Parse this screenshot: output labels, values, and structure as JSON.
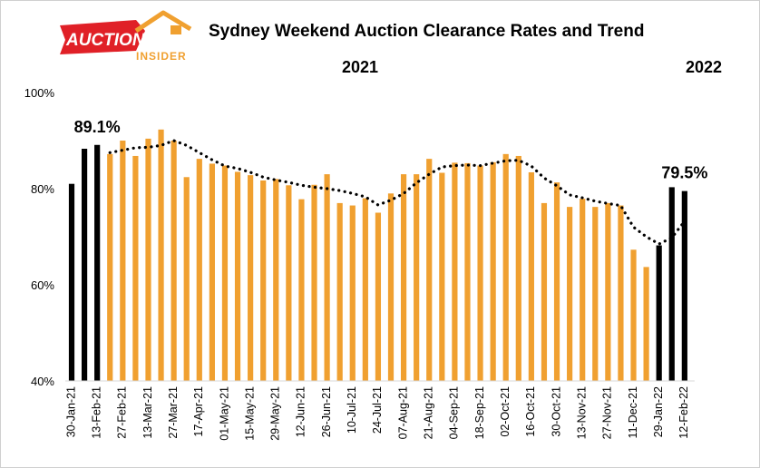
{
  "logo": {
    "word1": "AUCTION",
    "word2": "INSIDER"
  },
  "chart_data": {
    "type": "bar",
    "title": "Sydney Weekend Auction Clearance Rates and Trend",
    "year_labels": [
      "2021",
      "2022"
    ],
    "ylim": [
      40,
      100
    ],
    "yticks": [
      40,
      60,
      80,
      100
    ],
    "ytick_labels": [
      "40%",
      "60%",
      "80%",
      "100%"
    ],
    "x_tick_labels": [
      "30-Jan-21",
      "13-Feb-21",
      "27-Feb-21",
      "13-Mar-21",
      "27-Mar-21",
      "17-Apr-21",
      "01-May-21",
      "15-May-21",
      "29-May-21",
      "12-Jun-21",
      "26-Jun-21",
      "10-Jul-21",
      "24-Jul-21",
      "07-Aug-21",
      "21-Aug-21",
      "04-Sep-21",
      "18-Sep-21",
      "02-Oct-21",
      "16-Oct-21",
      "30-Oct-21",
      "13-Nov-21",
      "27-Nov-21",
      "11-Dec-21",
      "29-Jan-22",
      "12-Feb-22"
    ],
    "colors": {
      "recent": "#000000",
      "other": "#f0a030",
      "trend": "#000000"
    },
    "series": [
      {
        "name": "Clearance rate",
        "values": [
          81,
          88.3,
          89.1,
          87.2,
          90,
          86.8,
          90.4,
          92.3,
          90,
          82.4,
          86.2,
          85.2,
          84.8,
          83.5,
          82.8,
          81.7,
          82,
          80.7,
          77.8,
          80.8,
          83,
          77,
          76.5,
          78,
          75,
          79,
          83,
          83,
          86.2,
          83.3,
          85.4,
          85.3,
          84.8,
          85.5,
          87.2,
          86.8,
          83.4,
          77,
          81.3,
          76.2,
          77.9,
          76.2,
          77,
          76.5,
          67.3,
          63.7,
          68.2,
          80.3,
          79.5
        ]
      },
      {
        "name": "Trend",
        "values": [
          null,
          null,
          null,
          87.5,
          88,
          88.5,
          88.6,
          89,
          90,
          89,
          87.5,
          86,
          84.7,
          84.2,
          83.4,
          82.4,
          81.8,
          81.3,
          80.7,
          80.3,
          80,
          79.6,
          79,
          78.3,
          76.6,
          77.6,
          79,
          81.2,
          83,
          84.5,
          84.8,
          84.9,
          84.8,
          85.3,
          85.8,
          85.9,
          84.7,
          82.2,
          80.6,
          78.7,
          78.1,
          77.4,
          76.9,
          76.5,
          72,
          70,
          68.5,
          69.8,
          73.2
        ]
      }
    ],
    "highlighted_indices": [
      0,
      1,
      2,
      46,
      47,
      48
    ],
    "annotations": [
      {
        "index": 2,
        "text": "89.1%"
      },
      {
        "index": 48,
        "text": "79.5%"
      }
    ]
  }
}
